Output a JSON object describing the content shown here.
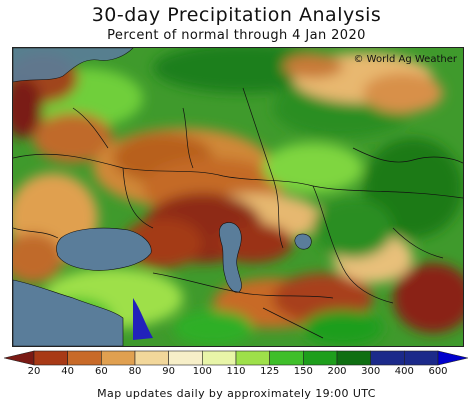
{
  "title": "30-day Precipitation Analysis",
  "subtitle": "Percent of normal through 4 Jan 2020",
  "copyright": "© World Ag Weather",
  "legend": {
    "ticks": [
      "20",
      "40",
      "60",
      "80",
      "90",
      "100",
      "110",
      "125",
      "150",
      "200",
      "300",
      "400",
      "600"
    ],
    "colors": [
      "#7a1a14",
      "#a83a16",
      "#c86a28",
      "#e0a050",
      "#f2d79a",
      "#f7efc8",
      "#e8f5a8",
      "#9ee04a",
      "#3fbf2a",
      "#1e9e1c",
      "#0f6f12",
      "#1c2a8a",
      "#0000cc"
    ]
  },
  "footer": "Map updates daily by approximately 19:00 UTC"
}
